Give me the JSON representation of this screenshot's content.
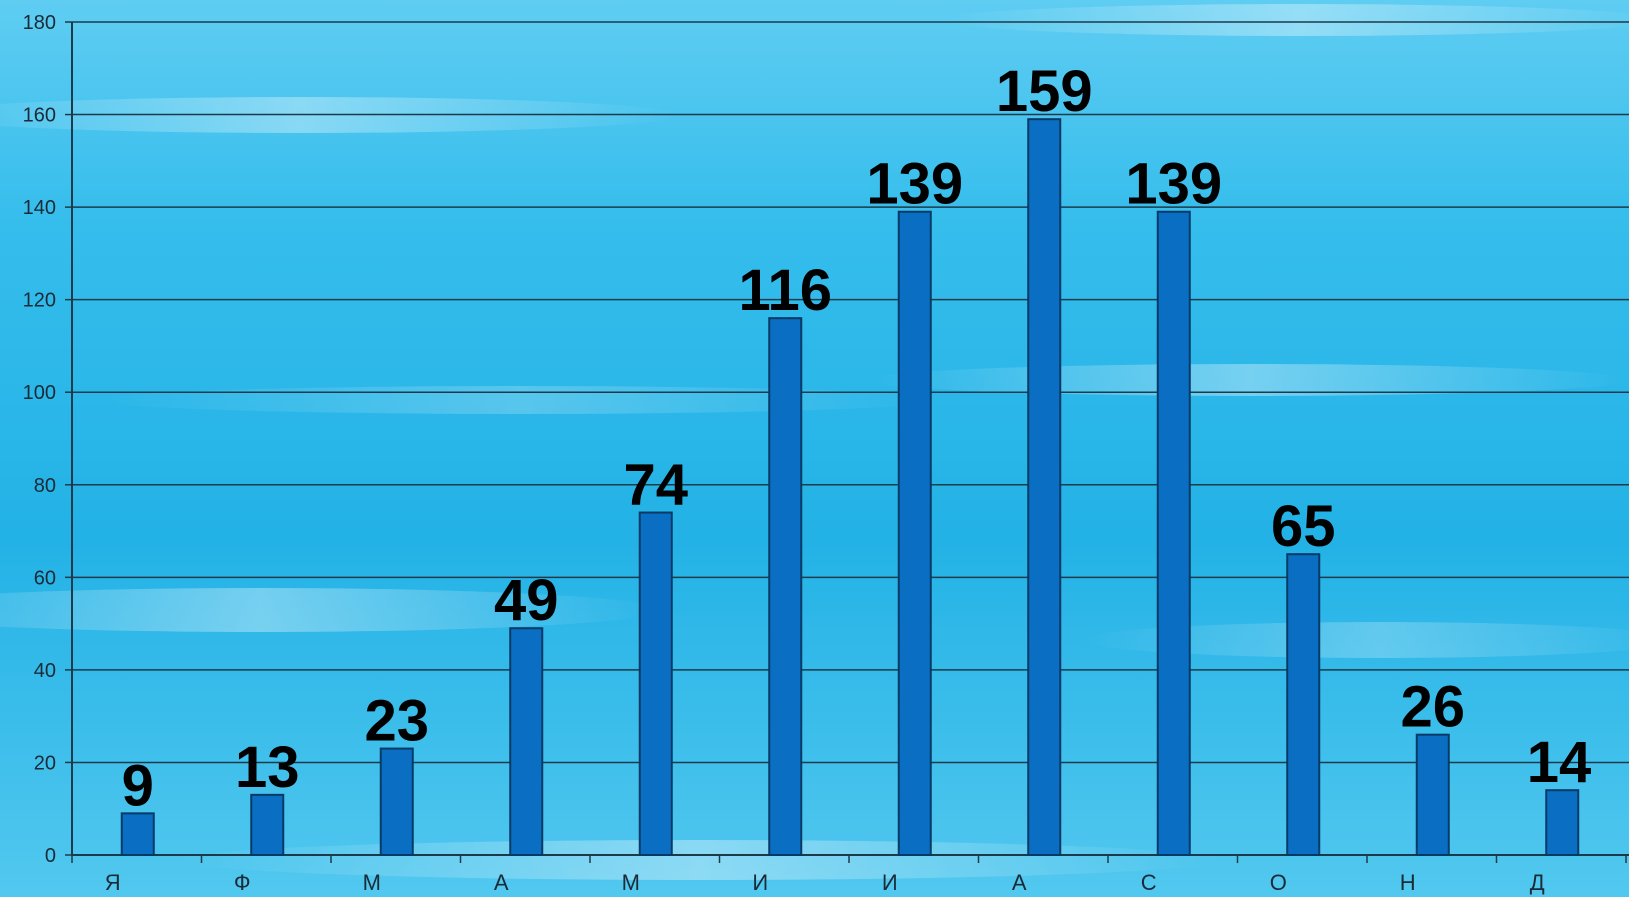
{
  "chart_data": {
    "type": "bar",
    "categories": [
      "Я",
      "Ф",
      "М",
      "А",
      "М",
      "И",
      "И",
      "А",
      "С",
      "О",
      "Н",
      "Д"
    ],
    "values": [
      9,
      13,
      23,
      49,
      74,
      116,
      139,
      159,
      139,
      65,
      26,
      14
    ],
    "data_labels": [
      "9",
      "13",
      "23",
      "49",
      "74",
      "116",
      "139",
      "159",
      "139",
      "65",
      "26",
      "14"
    ],
    "y_ticks": [
      "0",
      "20",
      "40",
      "60",
      "80",
      "100",
      "120",
      "140",
      "160",
      "180"
    ],
    "ylim": [
      0,
      180
    ],
    "grid": true,
    "legend": "none",
    "title": "",
    "xlabel": "",
    "ylabel": "",
    "colors": {
      "bar": "#0a6fc2",
      "bar_edge": "#063a66",
      "grid": "#1c3a4a",
      "background": "#2ab8e8"
    }
  }
}
